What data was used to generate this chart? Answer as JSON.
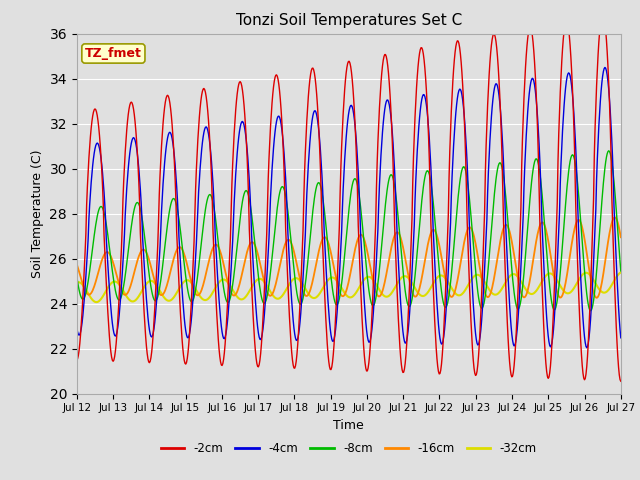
{
  "title": "Tonzi Soil Temperatures Set C",
  "xlabel": "Time",
  "ylabel": "Soil Temperature (C)",
  "annotation": "TZ_fmet",
  "ylim": [
    20,
    36
  ],
  "yticks": [
    20,
    22,
    24,
    26,
    28,
    30,
    32,
    34,
    36
  ],
  "bg_color": "#e0e0e0",
  "series": {
    "-2cm": {
      "color": "#dd0000",
      "lw": 1.0
    },
    "-4cm": {
      "color": "#0000dd",
      "lw": 1.0
    },
    "-8cm": {
      "color": "#00bb00",
      "lw": 1.0
    },
    "-16cm": {
      "color": "#ff8800",
      "lw": 1.3
    },
    "-32cm": {
      "color": "#dddd00",
      "lw": 1.5
    }
  },
  "legend_labels": [
    "-2cm",
    "-4cm",
    "-8cm",
    "-16cm",
    "-32cm"
  ],
  "legend_colors": [
    "#dd0000",
    "#0000dd",
    "#00bb00",
    "#ff8800",
    "#dddd00"
  ],
  "xtick_labels": [
    "Jul 12",
    "Jul 13",
    "Jul 14",
    "Jul 15",
    "Jul 16",
    "Jul 17",
    "Jul 18",
    "Jul 19",
    "Jul 20",
    "Jul 21",
    "Jul 22",
    "Jul 23",
    "Jul 24",
    "Jul 25",
    "Jul 26",
    "Jul 27"
  ]
}
